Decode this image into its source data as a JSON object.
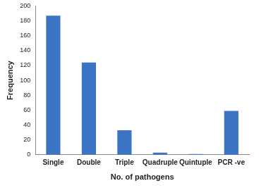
{
  "chart_data": {
    "type": "bar",
    "categories": [
      "Single",
      "Double",
      "Triple",
      "Quadruple",
      "Quintuple",
      "PCR -ve"
    ],
    "values": [
      187,
      124,
      33,
      3,
      1,
      59
    ],
    "color": "#3b74c2",
    "ylim": [
      0,
      200
    ],
    "yticks": [
      0,
      20,
      40,
      60,
      80,
      100,
      120,
      140,
      160,
      180,
      200
    ],
    "x_label": "No. of pathogens",
    "y_label": "Frequency",
    "grid": false
  }
}
